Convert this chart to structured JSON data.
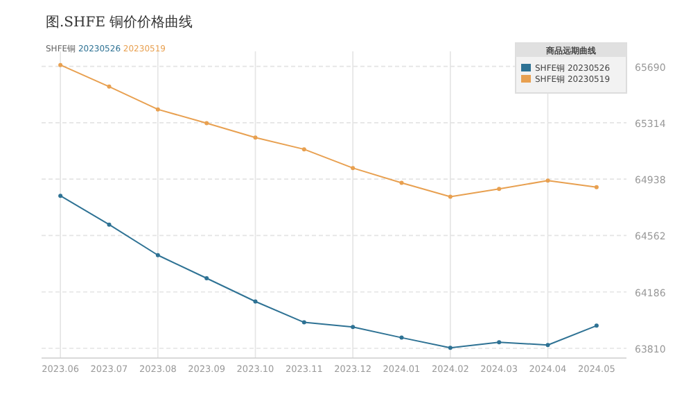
{
  "chart_data": {
    "type": "line",
    "title": "图.SHFE 铜价价格曲线",
    "subtitle": "SHFE铜 20230526 20230519",
    "categories": [
      "2023.06",
      "2023.07",
      "2023.08",
      "2023.09",
      "2023.10",
      "2023.11",
      "2023.12",
      "2024.01",
      "2024.02",
      "2024.03",
      "2024.04",
      "2024.05"
    ],
    "series": [
      {
        "name": "SHFE铜 20230526",
        "color": "#2e7294",
        "values": [
          64827,
          64635,
          64431,
          64277,
          64122,
          63983,
          63952,
          63881,
          63813,
          63850,
          63832,
          63961
        ]
      },
      {
        "name": "SHFE铜 20230519",
        "color": "#e8a050",
        "values": [
          65699,
          65555,
          65403,
          65311,
          65215,
          65137,
          65012,
          64913,
          64821,
          64873,
          64928,
          64884
        ]
      }
    ],
    "legend_title": "商品远期曲线",
    "legend": "top right",
    "ylim": [
      63745,
      65790
    ],
    "yticks": [
      63810,
      64186,
      64562,
      64938,
      65314,
      65690
    ],
    "grid": true,
    "marker": "circle"
  }
}
